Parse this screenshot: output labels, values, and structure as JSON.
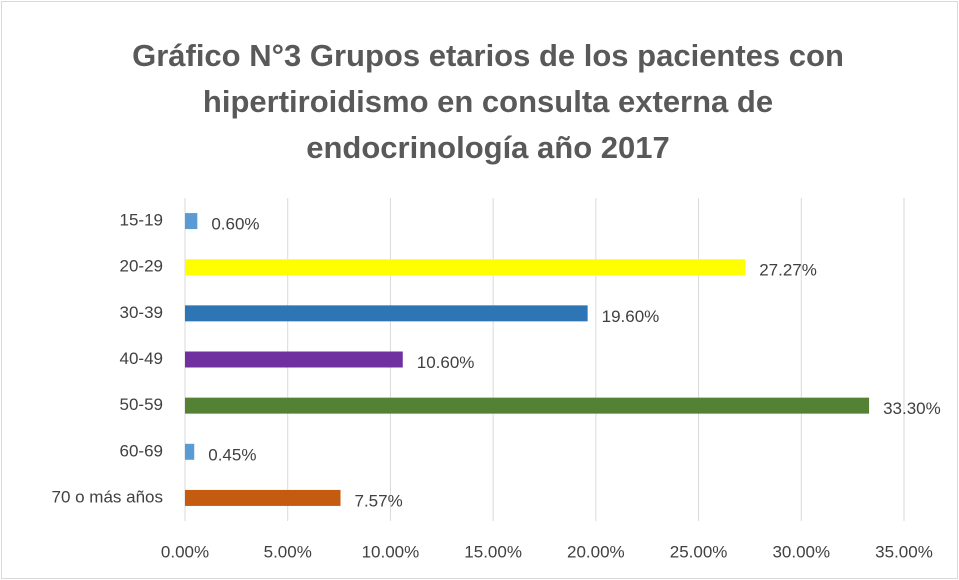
{
  "chart_data": {
    "type": "bar",
    "orientation": "horizontal",
    "title": [
      "Gráfico N°3 Grupos etarios de los pacientes con",
      "hipertiroidismo en consulta externa de",
      "endocrinología año 2017"
    ],
    "categories": [
      "15-19",
      "20-29",
      "30-39",
      "40-49",
      "50-59",
      "60-69",
      "70 o más años"
    ],
    "values": [
      0.6,
      27.27,
      19.6,
      10.6,
      33.3,
      0.45,
      7.57
    ],
    "value_labels": [
      "0.60%",
      "27.27%",
      "19.60%",
      "10.60%",
      "33.30%",
      "0.45%",
      "7.57%"
    ],
    "colors": [
      "#5b9bd5",
      "#ffff00",
      "#2e75b6",
      "#7030a0",
      "#548235",
      "#5b9bd5",
      "#c55a11"
    ],
    "xlim": [
      0,
      35
    ],
    "xticks": [
      {
        "value": 0,
        "label": "0.00%"
      },
      {
        "value": 5,
        "label": "5.00%"
      },
      {
        "value": 10,
        "label": "10.00%"
      },
      {
        "value": 15,
        "label": "15.00%"
      },
      {
        "value": 20,
        "label": "20.00%"
      },
      {
        "value": 25,
        "label": "25.00%"
      },
      {
        "value": 30,
        "label": "30.00%"
      },
      {
        "value": 35,
        "label": "35.00%"
      }
    ],
    "grid": true
  }
}
